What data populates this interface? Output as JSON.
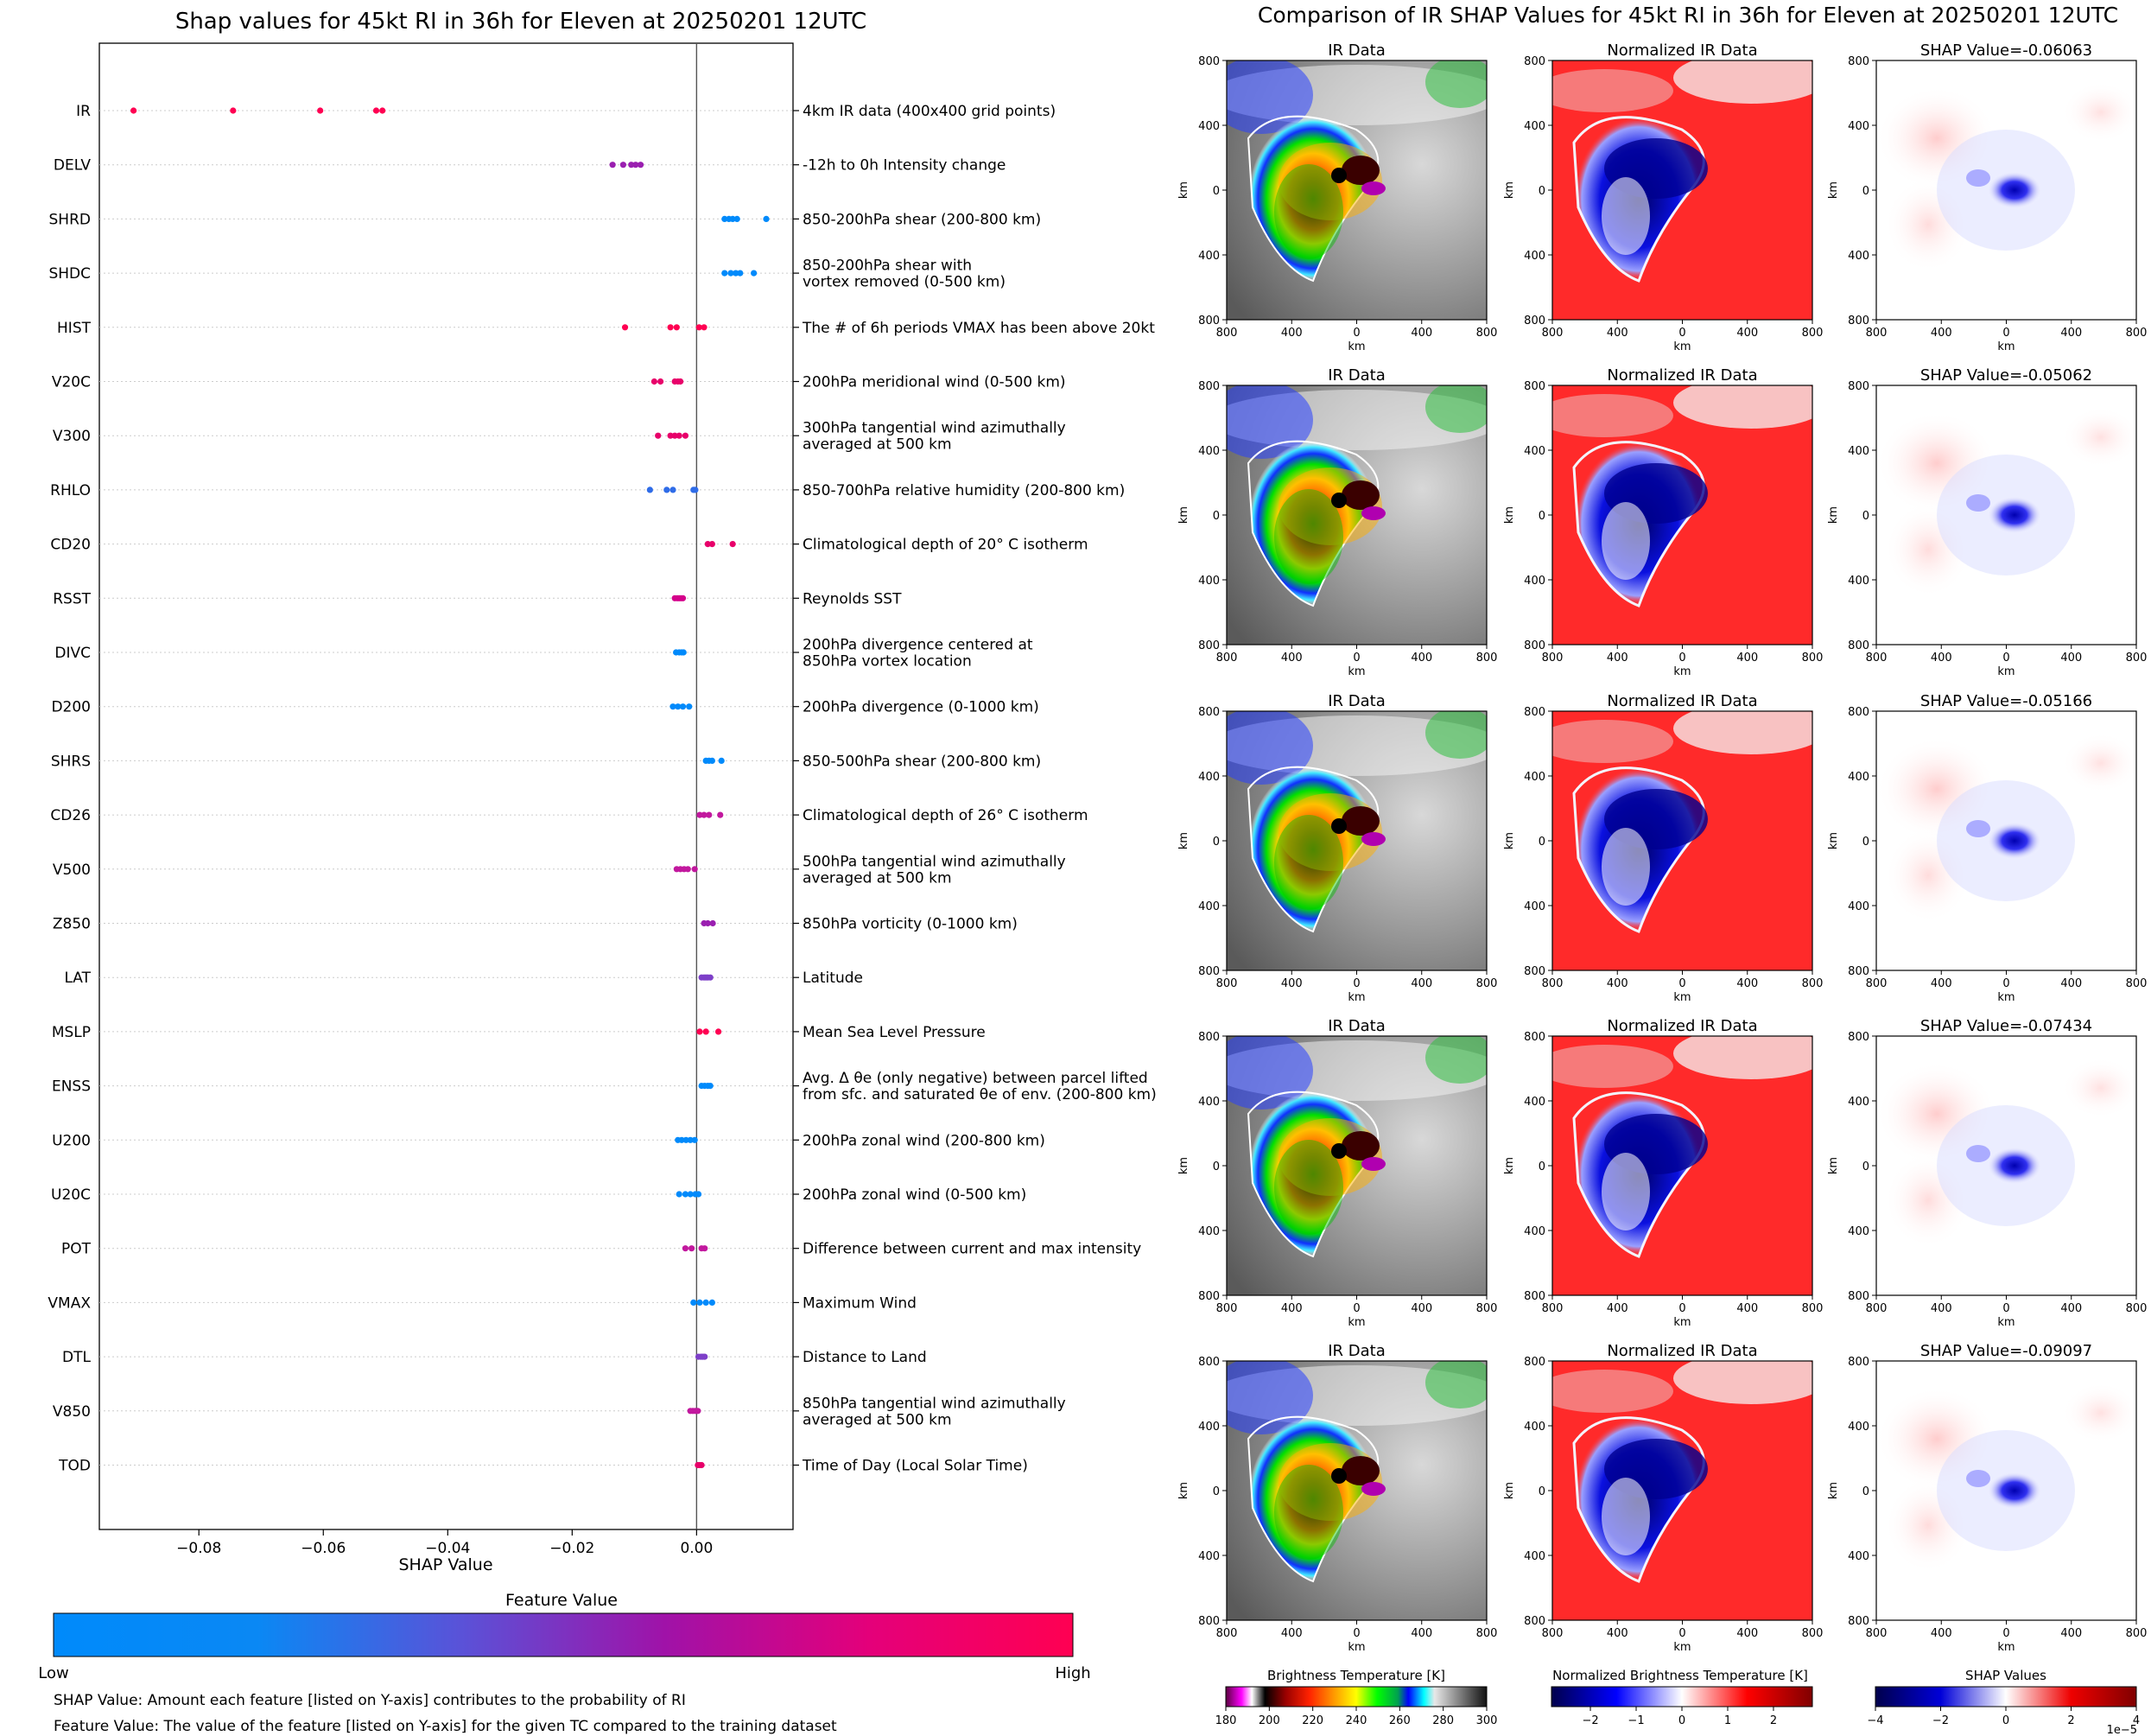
{
  "left_title": "Shap values for 45kt RI in 36h for Eleven at 20250201 12UTC",
  "right_title": "Comparison of IR SHAP Values for 45kt RI in 36h for Eleven at 20250201 12UTC",
  "colorbar": {
    "title": "Feature Value",
    "low": "Low",
    "high": "High",
    "low_color": "#008afb",
    "high_color": "#ff0052"
  },
  "footnotes": [
    "SHAP Value: Amount each feature [listed on Y-axis] contributes to the probability of RI",
    "Feature Value: The value of the feature [listed on Y-axis] for the given TC compared to the training dataset"
  ],
  "chart_data": [
    {
      "type": "scatter",
      "title": "Shap values for 45kt RI in 36h for Eleven at 20250201 12UTC",
      "xlabel": "SHAP Value",
      "xlim": [
        -0.096,
        0.0155
      ],
      "xticks": [
        -0.08,
        -0.06,
        -0.04,
        -0.02,
        0.0
      ],
      "xtick_labels": [
        "−0.08",
        "−0.06",
        "−0.04",
        "−0.02",
        "0.00"
      ],
      "grid": "horizontal dotted per feature",
      "features": [
        {
          "name": "IR",
          "desc": [
            "4km IR data (400x400 grid points)"
          ],
          "color": "#ff0052",
          "values": [
            -0.0905,
            -0.0745,
            -0.0605,
            -0.0515,
            -0.0505
          ]
        },
        {
          "name": "DELV",
          "desc": [
            "-12h to 0h Intensity change"
          ],
          "color": "#9a1fb0",
          "values": [
            -0.0135,
            -0.0118,
            -0.0105,
            -0.0098,
            -0.009
          ]
        },
        {
          "name": "SHRD",
          "desc": [
            "850-200hPa shear (200-800 km)"
          ],
          "color": "#008afb",
          "values": [
            0.0045,
            0.0052,
            0.0058,
            0.0065,
            0.0112
          ]
        },
        {
          "name": "SHDC",
          "desc": [
            "850-200hPa shear with",
            "vortex removed (0-500 km)"
          ],
          "color": "#008afb",
          "values": [
            0.0045,
            0.0055,
            0.0063,
            0.007,
            0.0092
          ]
        },
        {
          "name": "HIST",
          "desc": [
            "The # of 6h periods VMAX has been above 20kt"
          ],
          "color": "#ff0052",
          "values": [
            -0.0115,
            -0.0042,
            -0.0032,
            0.0004,
            0.0012
          ]
        },
        {
          "name": "V20C",
          "desc": [
            "200hPa meridional wind (0-500 km)"
          ],
          "color": "#e8006a",
          "values": [
            -0.0068,
            -0.0058,
            -0.0035,
            -0.003,
            -0.0026
          ]
        },
        {
          "name": "V300",
          "desc": [
            "300hPa tangential wind azimuthally",
            "averaged at 500 km"
          ],
          "color": "#e8006a",
          "values": [
            -0.0062,
            -0.0042,
            -0.0035,
            -0.0028,
            -0.0018
          ]
        },
        {
          "name": "RHLO",
          "desc": [
            "850-700hPa relative humidity (200-800 km)"
          ],
          "color": "#2f6ce8",
          "values": [
            -0.0075,
            -0.0048,
            -0.0038,
            -0.0005,
            -0.0002
          ]
        },
        {
          "name": "CD20",
          "desc": [
            "Climatological depth of 20° C isotherm"
          ],
          "color": "#e8006a",
          "values": [
            0.0018,
            0.0025,
            0.0058
          ]
        },
        {
          "name": "RSST",
          "desc": [
            "Reynolds SST"
          ],
          "color": "#d4008a",
          "values": [
            -0.0035,
            -0.0031,
            -0.0028,
            -0.0025,
            -0.0022
          ]
        },
        {
          "name": "DIVC",
          "desc": [
            "200hPa divergence centered at",
            "850hPa vortex location"
          ],
          "color": "#008afb",
          "values": [
            -0.0033,
            -0.0028,
            -0.0024,
            -0.0021
          ]
        },
        {
          "name": "D200",
          "desc": [
            "200hPa divergence (0-1000 km)"
          ],
          "color": "#008afb",
          "values": [
            -0.0038,
            -0.003,
            -0.0022,
            -0.0012
          ]
        },
        {
          "name": "SHRS",
          "desc": [
            "850-500hPa shear (200-800 km)"
          ],
          "color": "#008afb",
          "values": [
            0.0015,
            0.002,
            0.0025,
            0.004
          ]
        },
        {
          "name": "CD26",
          "desc": [
            "Climatological depth of 26° C isotherm"
          ],
          "color": "#c2189e",
          "values": [
            0.0005,
            0.0012,
            0.002,
            0.0038
          ]
        },
        {
          "name": "V500",
          "desc": [
            "500hPa tangential wind azimuthally",
            "averaged at 500 km"
          ],
          "color": "#c2189e",
          "values": [
            -0.0032,
            -0.0026,
            -0.002,
            -0.0014,
            -0.0003
          ]
        },
        {
          "name": "Z850",
          "desc": [
            "850hPa vorticity (0-1000 km)"
          ],
          "color": "#9a1fb0",
          "values": [
            0.0012,
            0.0018,
            0.0026
          ]
        },
        {
          "name": "LAT",
          "desc": [
            "Latitude"
          ],
          "color": "#7d3fc8",
          "values": [
            0.0008,
            0.0012,
            0.0015,
            0.0018,
            0.0022
          ]
        },
        {
          "name": "MSLP",
          "desc": [
            "Mean Sea Level Pressure"
          ],
          "color": "#ff0052",
          "values": [
            0.0005,
            0.0015,
            0.0035
          ]
        },
        {
          "name": "ENSS",
          "desc": [
            "Avg. Δ θe (only negative) between parcel lifted",
            "from sfc. and saturated θe of env. (200-800 km)"
          ],
          "color": "#008afb",
          "values": [
            0.0008,
            0.0013,
            0.0018,
            0.0022
          ]
        },
        {
          "name": "U200",
          "desc": [
            "200hPa zonal wind (200-800 km)"
          ],
          "color": "#008afb",
          "values": [
            -0.003,
            -0.0024,
            -0.0017,
            -0.001,
            -0.0003
          ]
        },
        {
          "name": "U20C",
          "desc": [
            "200hPa zonal wind (0-500 km)"
          ],
          "color": "#008afb",
          "values": [
            -0.0028,
            -0.0018,
            -0.001,
            -0.0002,
            0.0003
          ]
        },
        {
          "name": "POT",
          "desc": [
            "Difference between current and max intensity"
          ],
          "color": "#c2189e",
          "values": [
            -0.0018,
            -0.0008,
            0.0008,
            0.0013
          ]
        },
        {
          "name": "VMAX",
          "desc": [
            "Maximum Wind"
          ],
          "color": "#008afb",
          "values": [
            -0.0005,
            0.0005,
            0.0015,
            0.0025
          ]
        },
        {
          "name": "DTL",
          "desc": [
            "Distance to Land"
          ],
          "color": "#7d3fc8",
          "values": [
            0.0003,
            0.0007,
            0.001,
            0.0013
          ]
        },
        {
          "name": "V850",
          "desc": [
            "850hPa tangential wind azimuthally",
            "averaged at 500 km"
          ],
          "color": "#c2189e",
          "values": [
            -0.001,
            -0.0006,
            -0.0002,
            0.0002
          ]
        },
        {
          "name": "TOD",
          "desc": [
            "Time of Day (Local Solar Time)"
          ],
          "color": "#e8006a",
          "values": [
            0.0002,
            0.0005,
            0.0008
          ]
        }
      ]
    },
    {
      "type": "heatmap",
      "title": "Comparison of IR SHAP Values for 45kt RI in 36h for Eleven at 20250201 12UTC",
      "column_titles": [
        "IR Data",
        "Normalized IR Data"
      ],
      "shap_titles": [
        "SHAP Value=-0.06063",
        "SHAP Value=-0.05062",
        "SHAP Value=-0.05166",
        "SHAP Value=-0.07434",
        "SHAP Value=-0.09097"
      ],
      "axis_label": "km",
      "tick_labels": [
        "800",
        "400",
        "0",
        "400",
        "800"
      ],
      "colorbars": [
        {
          "label": "Brightness Temperature [K]",
          "ticks": [
            "180",
            "200",
            "220",
            "240",
            "260",
            "280",
            "300"
          ]
        },
        {
          "label": "Normalized Brightness Temperature [K]",
          "ticks": [
            "−2",
            "−1",
            "0",
            "1",
            "2"
          ]
        },
        {
          "label": "SHAP Values",
          "ticks": [
            "−4",
            "−2",
            "0",
            "2",
            "4"
          ],
          "offset": "1e−5"
        }
      ]
    }
  ]
}
